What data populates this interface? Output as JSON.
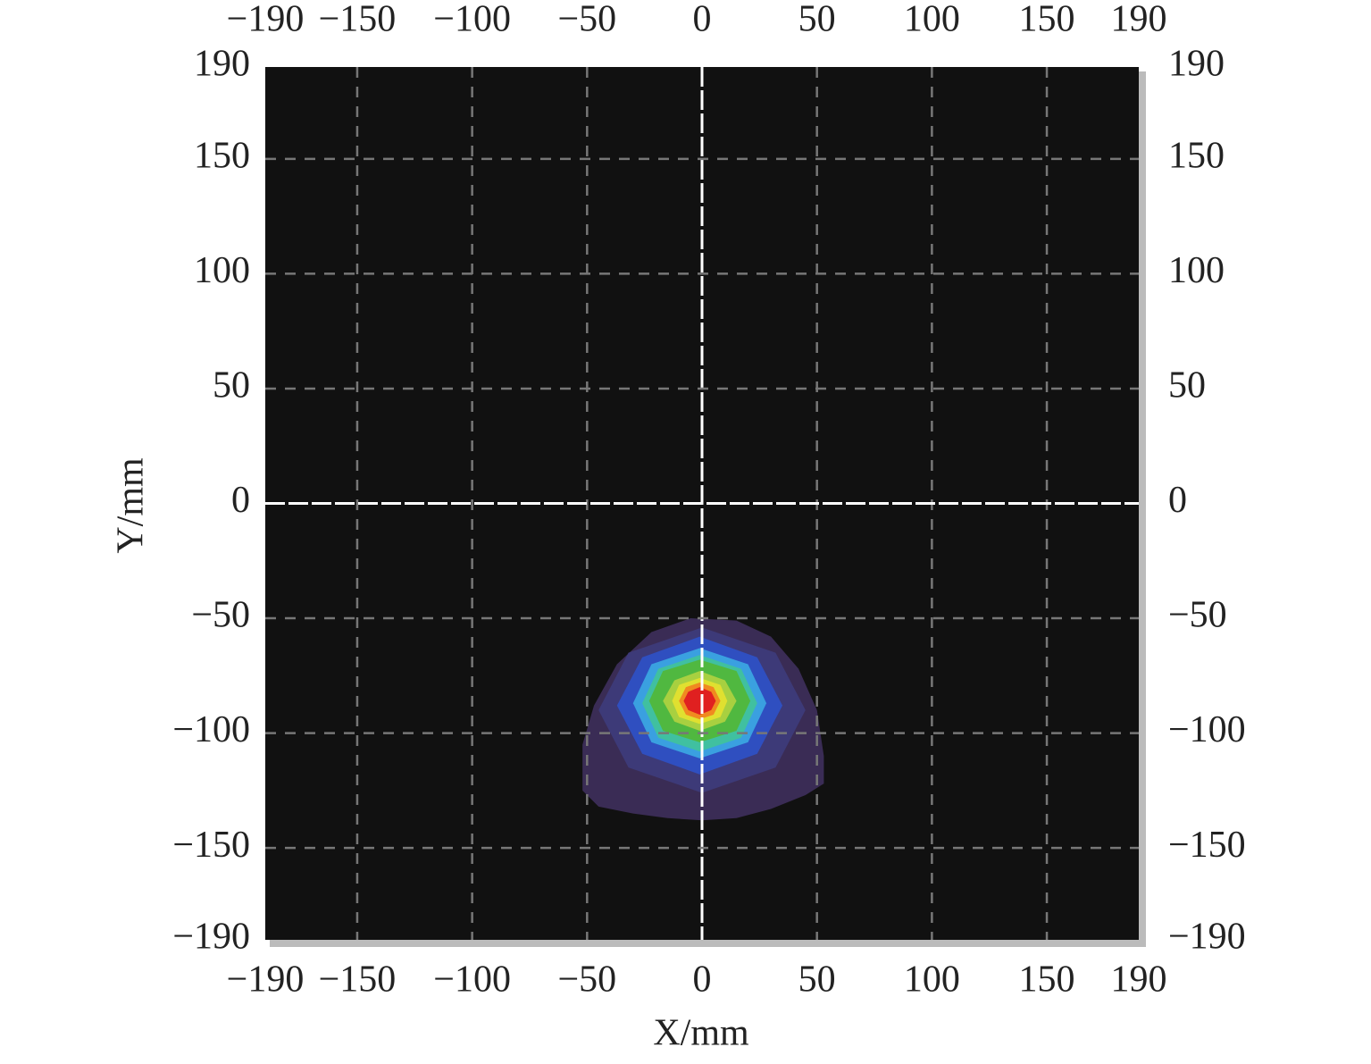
{
  "chart_data": {
    "type": "contour",
    "xlabel": "X/mm",
    "ylabel": "Y/mm",
    "xlim": [
      -190,
      190
    ],
    "ylim": [
      -190,
      190
    ],
    "xticks": [
      {
        "value": -190,
        "label": "−190"
      },
      {
        "value": -150,
        "label": "−150"
      },
      {
        "value": -100,
        "label": "−100"
      },
      {
        "value": -50,
        "label": "−50"
      },
      0,
      50,
      100,
      150,
      190
    ],
    "yticks": [
      {
        "value": -190,
        "label": "−190"
      },
      {
        "value": -150,
        "label": "−150"
      },
      {
        "value": -100,
        "label": "−100"
      },
      {
        "value": -50,
        "label": "−50"
      },
      0,
      50,
      100,
      150,
      190
    ],
    "grid": true,
    "background": "#111111",
    "series": [
      {
        "color": "#3a2c55",
        "x": [
          -5,
          15,
          30,
          42,
          50,
          53,
          53,
          45,
          30,
          15,
          0,
          -15,
          -30,
          -45,
          -52,
          -52,
          -47,
          -37,
          -22
        ],
        "values": [
          -50,
          -51,
          -58,
          -72,
          -90,
          -110,
          -122,
          -127,
          -133,
          -137,
          -138,
          -137,
          -135,
          -132,
          -125,
          -105,
          -88,
          -70,
          -56
        ]
      },
      {
        "color": "#3d3a78",
        "x": [
          45,
          32,
          0,
          -32,
          -45,
          -32,
          0,
          32
        ],
        "values": [
          -90,
          -65,
          -54,
          -65,
          -90,
          -115,
          -126,
          -115
        ]
      },
      {
        "color": "#2f4fc0",
        "x": [
          35,
          24,
          -1,
          -26,
          -37,
          -26,
          -1,
          24
        ],
        "values": [
          -88,
          -67,
          -58,
          -67,
          -88,
          -109,
          -118,
          -109
        ]
      },
      {
        "color": "#3aa0e0",
        "x": [
          28,
          20,
          -1,
          -22,
          -30,
          -22,
          -1,
          20
        ],
        "values": [
          -87,
          -70,
          -63,
          -70,
          -87,
          -104,
          -111,
          -104
        ]
      },
      {
        "color": "#40c0a0",
        "x": [
          24,
          17,
          -1,
          -19,
          -26,
          -19,
          -1,
          17
        ],
        "values": [
          -87,
          -72,
          -66,
          -72,
          -87,
          -102,
          -108,
          -102
        ]
      },
      {
        "color": "#50b840",
        "x": [
          21,
          15,
          -1,
          -17,
          -23,
          -17,
          -1,
          15
        ],
        "values": [
          -86,
          -73,
          -68,
          -73,
          -86,
          -99,
          -104,
          -99
        ]
      },
      {
        "color": "#a8d040",
        "x": [
          15,
          10,
          -1,
          -12,
          -17,
          -12,
          -1,
          10
        ],
        "values": [
          -86,
          -77,
          -73,
          -77,
          -86,
          -95,
          -99,
          -95
        ]
      },
      {
        "color": "#e0e030",
        "x": [
          11,
          8,
          -1,
          -10,
          -13,
          -10,
          -1,
          8
        ],
        "values": [
          -86,
          -79,
          -76,
          -79,
          -86,
          -93,
          -96,
          -93
        ]
      },
      {
        "color": "#f08a20",
        "x": [
          8,
          5,
          -1,
          -7,
          -10,
          -7,
          -1,
          5
        ],
        "values": [
          -86,
          -80,
          -78,
          -80,
          -86,
          -92,
          -94,
          -92
        ]
      },
      {
        "color": "#e02020",
        "x": [
          6,
          4,
          -1,
          -6,
          -8,
          -6,
          -1,
          4
        ],
        "values": [
          -86,
          -82,
          -80,
          -82,
          -86,
          -90,
          -92,
          -90
        ]
      }
    ]
  }
}
